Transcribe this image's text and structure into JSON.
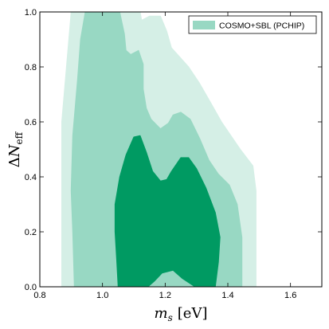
{
  "chart_data": {
    "type": "area",
    "x_label": "m_s [eV]",
    "y_label": "ΔN_eff",
    "x_label_parts": {
      "sym": "m",
      "sub": "s",
      "unit": "[eV]"
    },
    "y_label_parts": {
      "delta": "Δ",
      "sym": "N",
      "sub": "eff"
    },
    "x_range": [
      0.8,
      1.7
    ],
    "y_range": [
      0.0,
      1.0
    ],
    "x_ticks": [
      "0.8",
      "1.0",
      "1.2",
      "1.4",
      "1.6"
    ],
    "y_ticks": [
      "0.0",
      "0.2",
      "0.4",
      "0.6",
      "0.8",
      "1.0"
    ],
    "legend": {
      "placement": "top-right",
      "label": "COSMO+SBL (PCHIP)",
      "swatch_color": "#98d8c3"
    },
    "colors": {
      "outer": "#d5efe6",
      "middle": "#98d8c3",
      "inner": "#009a62"
    },
    "series": [
      {
        "level": "outer",
        "polygon": [
          [
            0.87,
            0.0
          ],
          [
            0.87,
            0.6
          ],
          [
            0.885,
            0.8
          ],
          [
            0.9,
            1.0
          ],
          [
            1.12,
            1.0
          ],
          [
            1.125,
            0.97
          ],
          [
            1.15,
            0.985
          ],
          [
            1.185,
            0.985
          ],
          [
            1.205,
            0.93
          ],
          [
            1.22,
            0.87
          ],
          [
            1.275,
            0.8
          ],
          [
            1.31,
            0.74
          ],
          [
            1.345,
            0.67
          ],
          [
            1.38,
            0.6
          ],
          [
            1.44,
            0.5
          ],
          [
            1.48,
            0.44
          ],
          [
            1.49,
            0.35
          ],
          [
            1.49,
            0.0
          ]
        ]
      },
      {
        "level": "middle",
        "polygon": [
          [
            0.91,
            0.0
          ],
          [
            0.905,
            0.2
          ],
          [
            0.9,
            0.35
          ],
          [
            0.905,
            0.55
          ],
          [
            0.92,
            0.75
          ],
          [
            0.93,
            0.9
          ],
          [
            0.945,
            1.0
          ],
          [
            1.055,
            1.0
          ],
          [
            1.07,
            0.92
          ],
          [
            1.075,
            0.86
          ],
          [
            1.09,
            0.845
          ],
          [
            1.115,
            0.86
          ],
          [
            1.13,
            0.81
          ],
          [
            1.13,
            0.72
          ],
          [
            1.14,
            0.65
          ],
          [
            1.155,
            0.61
          ],
          [
            1.185,
            0.575
          ],
          [
            1.21,
            0.595
          ],
          [
            1.225,
            0.625
          ],
          [
            1.25,
            0.635
          ],
          [
            1.28,
            0.61
          ],
          [
            1.31,
            0.54
          ],
          [
            1.34,
            0.46
          ],
          [
            1.37,
            0.41
          ],
          [
            1.405,
            0.37
          ],
          [
            1.43,
            0.3
          ],
          [
            1.445,
            0.18
          ],
          [
            1.445,
            0.0
          ]
        ]
      },
      {
        "level": "inner",
        "polygon": [
          [
            1.05,
            0.0
          ],
          [
            1.045,
            0.1
          ],
          [
            1.04,
            0.2
          ],
          [
            1.04,
            0.3
          ],
          [
            1.055,
            0.4
          ],
          [
            1.075,
            0.48
          ],
          [
            1.1,
            0.545
          ],
          [
            1.12,
            0.55
          ],
          [
            1.14,
            0.49
          ],
          [
            1.16,
            0.42
          ],
          [
            1.185,
            0.385
          ],
          [
            1.205,
            0.39
          ],
          [
            1.22,
            0.42
          ],
          [
            1.25,
            0.47
          ],
          [
            1.275,
            0.47
          ],
          [
            1.3,
            0.43
          ],
          [
            1.33,
            0.36
          ],
          [
            1.36,
            0.27
          ],
          [
            1.375,
            0.18
          ],
          [
            1.37,
            0.09
          ],
          [
            1.36,
            0.0
          ],
          [
            1.295,
            0.0
          ],
          [
            1.255,
            0.03
          ],
          [
            1.225,
            0.06
          ],
          [
            1.19,
            0.05
          ],
          [
            1.165,
            0.02
          ],
          [
            1.145,
            0.0
          ]
        ]
      }
    ]
  }
}
